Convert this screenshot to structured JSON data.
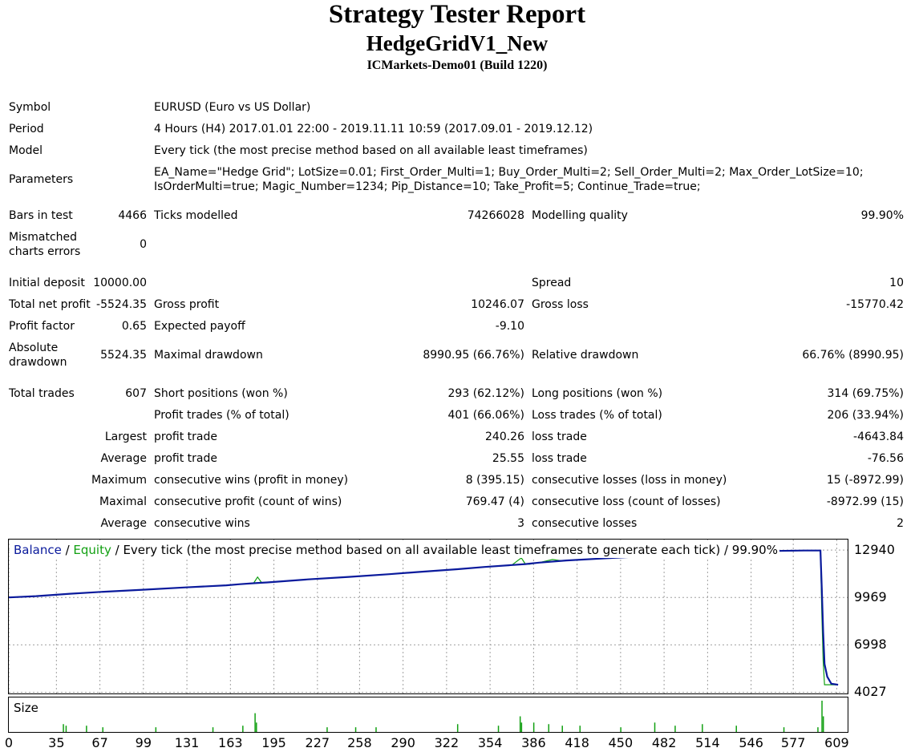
{
  "header": {
    "title": "Strategy Tester Report",
    "expert": "HedgeGridV1_New",
    "server": "ICMarkets-Demo01 (Build 1220)"
  },
  "settings": {
    "symbol_label": "Symbol",
    "symbol_value": "EURUSD (Euro vs US Dollar)",
    "period_label": "Period",
    "period_value": "4 Hours (H4) 2017.01.01 22:00 - 2019.11.11 10:59 (2017.09.01 - 2019.12.12)",
    "model_label": "Model",
    "model_value": "Every tick (the most precise method based on all available least timeframes)",
    "parameters_label": "Parameters",
    "parameters_line1": "EA_Name=\"Hedge Grid\"; LotSize=0.01; First_Order_Multi=1; Buy_Order_Multi=2; Sell_Order_Multi=2; Max_Order_LotSize=10;",
    "parameters_line2": "IsOrderMulti=true; Magic_Number=1234; Pip_Distance=10; Take_Profit=5; Continue_Trade=true;"
  },
  "quality": {
    "bars_label": "Bars in test",
    "bars_value": "4466",
    "ticks_label": "Ticks modelled",
    "ticks_value": "74266028",
    "modelling_label": "Modelling quality",
    "modelling_value": "99.90%",
    "mismatched_label_1": "Mismatched",
    "mismatched_label_2": "charts errors",
    "mismatched_value": "0"
  },
  "results": {
    "initial_deposit_label": "Initial deposit",
    "initial_deposit_value": "10000.00",
    "spread_label": "Spread",
    "spread_value": "10",
    "total_net_profit_label": "Total net profit",
    "total_net_profit_value": "-5524.35",
    "gross_profit_label": "Gross profit",
    "gross_profit_value": "10246.07",
    "gross_loss_label": "Gross loss",
    "gross_loss_value": "-15770.42",
    "profit_factor_label": "Profit factor",
    "profit_factor_value": "0.65",
    "expected_payoff_label": "Expected payoff",
    "expected_payoff_value": "-9.10",
    "absolute_drawdown_label_1": "Absolute",
    "absolute_drawdown_label_2": "drawdown",
    "absolute_drawdown_value": "5524.35",
    "maximal_drawdown_label": "Maximal drawdown",
    "maximal_drawdown_value": "8990.95 (66.76%)",
    "relative_drawdown_label": "Relative drawdown",
    "relative_drawdown_value": "66.76% (8990.95)"
  },
  "trades": {
    "total_trades_label": "Total trades",
    "total_trades_value": "607",
    "short_label": "Short positions (won %)",
    "short_value": "293 (62.12%)",
    "long_label": "Long positions (won %)",
    "long_value": "314 (69.75%)",
    "profit_trades_label": "Profit trades (% of total)",
    "profit_trades_value": "401 (66.06%)",
    "loss_trades_label": "Loss trades (% of total)",
    "loss_trades_value": "206 (33.94%)",
    "largest_label": "Largest",
    "largest_profit_label": "profit trade",
    "largest_profit_value": "240.26",
    "largest_loss_label": "loss trade",
    "largest_loss_value": "-4643.84",
    "average_label": "Average",
    "average_profit_label": "profit trade",
    "average_profit_value": "25.55",
    "average_loss_label": "loss trade",
    "average_loss_value": "-76.56",
    "maximum_label": "Maximum",
    "max_wins_label": "consecutive wins (profit in money)",
    "max_wins_value": "8 (395.15)",
    "max_losses_label": "consecutive losses (loss in money)",
    "max_losses_value": "15 (-8972.99)",
    "maximal_label": "Maximal",
    "maximal_profit_label": "consecutive profit (count of wins)",
    "maximal_profit_value": "769.47 (4)",
    "maximal_loss_label": "consecutive loss (count of losses)",
    "maximal_loss_value": "-8972.99 (15)",
    "average2_label": "Average",
    "avg_wins_label": "consecutive wins",
    "avg_wins_value": "3",
    "avg_losses_label": "consecutive losses",
    "avg_losses_value": "2"
  },
  "chart_data": {
    "type": "line",
    "legend": {
      "balance": "Balance",
      "sep1": " / ",
      "equity": "Equity",
      "rest": " / Every tick (the most precise method based on all available least timeframes to generate each tick) / 99.90%"
    },
    "size_label": "Size",
    "y_ticks": [
      "12940",
      "9969",
      "6998",
      "4027"
    ],
    "y_tick_values": [
      12940,
      9969,
      6998,
      4027
    ],
    "ylim": [
      4000,
      13600
    ],
    "x_ticks": [
      "0",
      "35",
      "67",
      "99",
      "131",
      "163",
      "195",
      "227",
      "258",
      "290",
      "322",
      "354",
      "386",
      "418",
      "450",
      "482",
      "514",
      "546",
      "577",
      "609"
    ],
    "x_tick_values": [
      0,
      35,
      67,
      99,
      131,
      163,
      195,
      227,
      258,
      290,
      322,
      354,
      386,
      418,
      450,
      482,
      514,
      546,
      577,
      609
    ],
    "xlim": [
      0,
      617
    ],
    "grid": true,
    "colors": {
      "balance": "#0a1a9c",
      "equity": "#12a012",
      "size": "#12a012",
      "grid": "#a0a0a0",
      "legend_text": "#000000"
    },
    "series": [
      {
        "name": "Balance",
        "x": [
          0,
          20,
          45,
          70,
          100,
          130,
          160,
          170,
          180,
          186,
          190,
          220,
          250,
          280,
          300,
          330,
          350,
          370,
          380,
          390,
          410,
          440,
          460,
          480,
          500,
          520,
          540,
          560,
          585,
          597,
          598,
          599,
          600,
          602,
          605,
          610
        ],
        "y": [
          9970,
          10050,
          10200,
          10330,
          10460,
          10600,
          10730,
          10800,
          10860,
          10890,
          10910,
          11100,
          11260,
          11430,
          11560,
          11740,
          11880,
          12000,
          12060,
          12150,
          12290,
          12430,
          12520,
          12610,
          12700,
          12780,
          12840,
          12880,
          12910,
          12910,
          10500,
          7800,
          5800,
          5000,
          4560,
          4500
        ]
      },
      {
        "name": "Equity",
        "x": [
          0,
          20,
          45,
          70,
          100,
          130,
          160,
          170,
          180,
          183,
          186,
          190,
          220,
          250,
          280,
          300,
          330,
          350,
          370,
          377,
          380,
          383,
          390,
          400,
          405,
          410,
          440,
          445,
          460,
          480,
          485,
          500,
          520,
          540,
          560,
          585,
          597,
          598,
          599,
          600,
          609,
          610
        ],
        "y": [
          9970,
          10050,
          10200,
          10330,
          10460,
          10600,
          10730,
          10800,
          10860,
          11250,
          10890,
          10910,
          11100,
          11260,
          11430,
          11560,
          11740,
          11880,
          12000,
          12450,
          12060,
          12050,
          12150,
          12350,
          12290,
          12290,
          12430,
          12550,
          12520,
          12610,
          12750,
          12700,
          12780,
          12840,
          12880,
          12910,
          12910,
          9000,
          6000,
          4500,
          4500,
          4500
        ]
      }
    ],
    "size_bars": {
      "x": [
        40,
        42,
        57,
        69,
        108,
        150,
        172,
        181,
        182,
        234,
        255,
        270,
        330,
        360,
        376,
        377,
        386,
        397,
        407,
        420,
        450,
        475,
        490,
        510,
        535,
        570,
        595,
        598,
        599
      ],
      "h": [
        0.25,
        0.2,
        0.2,
        0.15,
        0.15,
        0.15,
        0.2,
        0.6,
        0.3,
        0.15,
        0.15,
        0.15,
        0.25,
        0.2,
        0.5,
        0.3,
        0.3,
        0.25,
        0.2,
        0.2,
        0.15,
        0.3,
        0.2,
        0.25,
        0.2,
        0.15,
        0.15,
        1.0,
        0.5
      ]
    }
  }
}
